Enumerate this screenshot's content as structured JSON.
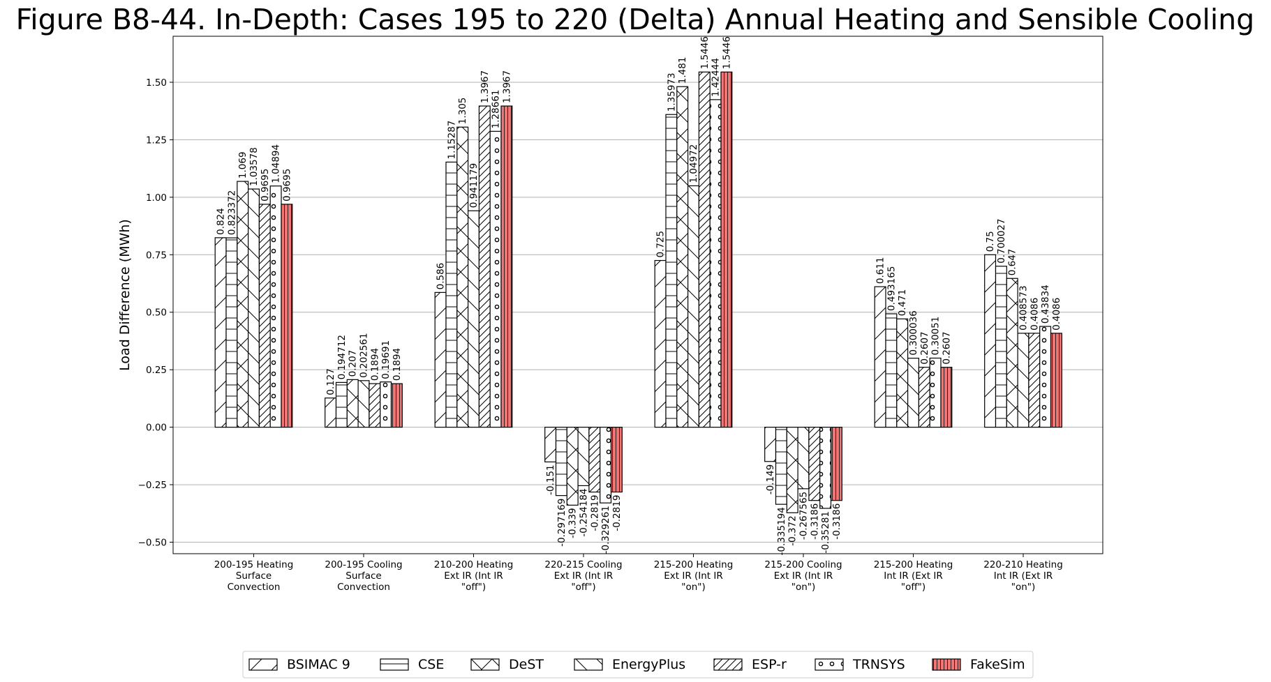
{
  "chart_data": {
    "type": "bar",
    "title": "Figure B8-44. In-Depth: Cases 195 to 220 (Delta) Annual Heating and Sensible Cooling",
    "xlabel": "",
    "ylabel": "Load Difference (MWh)",
    "ylim": [
      -0.55,
      1.7
    ],
    "yticks": [
      -0.5,
      -0.25,
      0.0,
      0.25,
      0.5,
      0.75,
      1.0,
      1.25,
      1.5
    ],
    "ytick_labels": [
      "−0.50",
      "−0.25",
      "0.00",
      "0.25",
      "0.50",
      "0.75",
      "1.00",
      "1.25",
      "1.50"
    ],
    "grid": "horizontal",
    "legend_position": "bottom",
    "categories": [
      [
        "200-195 Heating",
        "Surface",
        "Convection"
      ],
      [
        "200-195 Cooling",
        "Surface",
        "Convection"
      ],
      [
        "210-200 Heating",
        "Ext IR (Int IR",
        "\"off\")"
      ],
      [
        "220-215 Cooling",
        "Ext IR (Int IR",
        "\"off\")"
      ],
      [
        "215-200 Heating",
        "Ext IR (Int IR",
        "\"on\")"
      ],
      [
        "215-200 Cooling",
        "Ext IR (Int IR",
        "\"on\")"
      ],
      [
        "215-200 Heating",
        "Int IR (Ext IR",
        "\"off\")"
      ],
      [
        "220-210 Heating",
        "Int IR (Ext IR",
        "\"on\")"
      ]
    ],
    "series": [
      {
        "name": "BSIMAC 9",
        "pattern": "diag-up",
        "values": [
          0.824,
          0.127,
          0.586,
          -0.151,
          0.725,
          -0.149,
          0.611,
          0.75
        ],
        "labels": [
          "0.824",
          "0.127",
          "0.586",
          "-0.151",
          "0.725",
          "-0.149",
          "0.611",
          "0.75"
        ]
      },
      {
        "name": "CSE",
        "pattern": "horizontal",
        "values": [
          0.823372,
          0.194712,
          1.15287,
          -0.297169,
          1.35973,
          -0.335194,
          0.493165,
          0.700027
        ],
        "labels": [
          "0.823372",
          "0.194712",
          "1.15287",
          "-0.297169",
          "1.35973",
          "-0.335194",
          "0.493165",
          "0.700027"
        ]
      },
      {
        "name": "DeST",
        "pattern": "cross",
        "values": [
          1.069,
          0.207,
          1.305,
          -0.339,
          1.481,
          -0.372,
          0.471,
          0.647
        ],
        "labels": [
          "1.069",
          "0.207",
          "1.305",
          "-0.339",
          "1.481",
          "-0.372",
          "0.471",
          "0.647"
        ]
      },
      {
        "name": "EnergyPlus",
        "pattern": "diag-down",
        "values": [
          1.03578,
          0.202561,
          0.941179,
          -0.254184,
          1.04972,
          -0.267565,
          0.300036,
          0.408573
        ],
        "labels": [
          "1.03578",
          "0.202561",
          "0.941179",
          "-0.254184",
          "1.04972",
          "-0.267565",
          "0.300036",
          "0.408573"
        ]
      },
      {
        "name": "ESP-r",
        "pattern": "diag-dense",
        "values": [
          0.9695,
          0.1894,
          1.3967,
          -0.2819,
          1.5446,
          -0.3186,
          0.2607,
          0.4086
        ],
        "labels": [
          "0.9695",
          "0.1894",
          "1.3967",
          "-0.2819",
          "1.5446",
          "-0.3186",
          "0.2607",
          "0.4086"
        ]
      },
      {
        "name": "TRNSYS",
        "pattern": "circles",
        "values": [
          1.04894,
          0.19691,
          1.28661,
          -0.329261,
          1.42444,
          -0.35281,
          0.30051,
          0.43834
        ],
        "labels": [
          "1.04894",
          "0.19691",
          "1.28661",
          "-0.329261",
          "1.42444",
          "-0.35281",
          "0.30051",
          "0.43834"
        ]
      },
      {
        "name": "FakeSim",
        "pattern": "vertical-red",
        "values": [
          0.9695,
          0.1894,
          1.3967,
          -0.2819,
          1.5446,
          -0.3186,
          0.2607,
          0.4086
        ],
        "labels": [
          "0.9695",
          "0.1894",
          "1.3967",
          "-0.2819",
          "1.5446",
          "-0.3186",
          "0.2607",
          "0.4086"
        ]
      }
    ],
    "colors": {
      "fakesim_fill": "#f17777",
      "bar_fill": "#ffffff",
      "edge": "#000000",
      "grid": "#b0b0b0"
    }
  }
}
